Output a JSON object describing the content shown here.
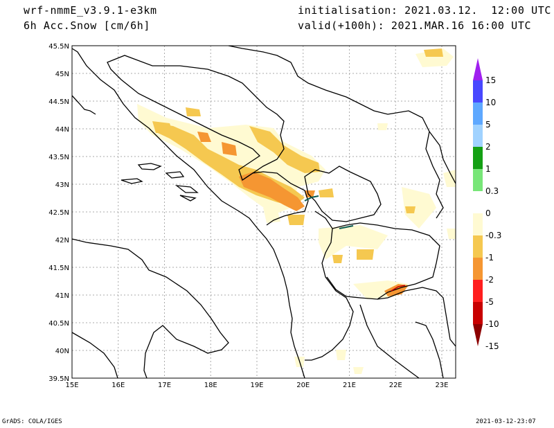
{
  "header": {
    "model": "wrf-nmmE_v3.9.1-e3km",
    "field": "6h Acc.Snow [cm/6h]",
    "init": "initialisation: 2021.03.12.  12:00 UTC",
    "valid": "valid(+100h): 2021.MAR.16 16:00 UTC"
  },
  "axes": {
    "lat_labels": [
      "45.5N",
      "45N",
      "44.5N",
      "44N",
      "43.5N",
      "43N",
      "42.5N",
      "42N",
      "41.5N",
      "41N",
      "40.5N",
      "40N",
      "39.5N"
    ],
    "lon_labels": [
      "15E",
      "16E",
      "17E",
      "18E",
      "19E",
      "20E",
      "21E",
      "22E",
      "23E"
    ],
    "lat_range": [
      39.5,
      45.5
    ],
    "lon_range": [
      15,
      23.3
    ],
    "grid": true
  },
  "colorbar": {
    "labels": [
      "15",
      "10",
      "5",
      "2",
      "1",
      "0.3",
      "0",
      "-0.3",
      "-1",
      "-2",
      "-5",
      "-10",
      "-15"
    ],
    "colors": [
      "#a020f0",
      "#4848ff",
      "#5ea8ff",
      "#a0d2ff",
      "#14a014",
      "#78e678",
      "#ffffff",
      "#fffad2",
      "#f5c850",
      "#f59632",
      "#ff1e1e",
      "#c80000",
      "#8c0000"
    ]
  },
  "footer": {
    "left": "GrADS: COLA/IGES",
    "right": "2021-03-12-23:07"
  }
}
